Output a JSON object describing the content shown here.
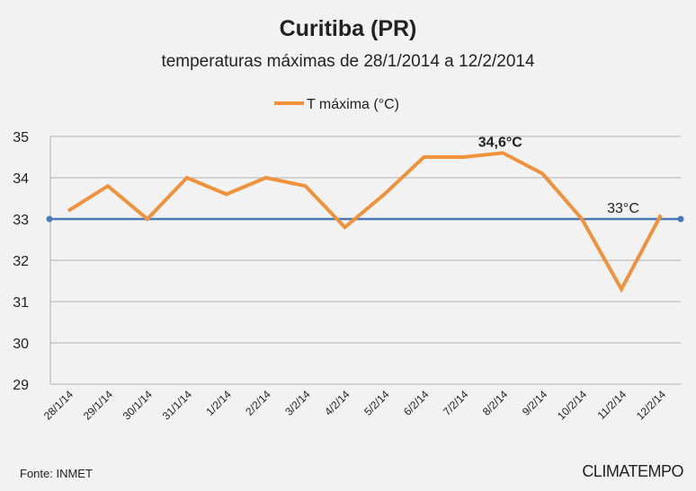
{
  "chart_data": {
    "type": "line",
    "title": "Curitiba (PR)",
    "subtitle": "temperaturas máximas de 28/1/2014 a 12/2/2014",
    "legend": {
      "label": "T máxima (°C)",
      "position": "top"
    },
    "categories": [
      "28/1/14",
      "29/1/14",
      "30/1/14",
      "31/1/14",
      "1/2/14",
      "2/2/14",
      "3/2/14",
      "4/2/14",
      "5/2/14",
      "6/2/14",
      "7/2/14",
      "8/2/14",
      "9/2/14",
      "10/2/14",
      "11/2/14",
      "12/2/14"
    ],
    "series": [
      {
        "name": "T máxima (°C)",
        "color": "#f0923c",
        "values": [
          33.2,
          33.8,
          33.0,
          34.0,
          33.6,
          34.0,
          33.8,
          32.8,
          33.6,
          34.5,
          34.5,
          34.6,
          34.1,
          33.0,
          31.3,
          33.1
        ]
      }
    ],
    "reference_line": {
      "value": 33,
      "label": "33°C",
      "color": "#4a79b5"
    },
    "annotations": [
      {
        "category": "8/2/14",
        "label": "34,6°C"
      }
    ],
    "ylim": [
      29,
      35
    ],
    "yticks": [
      "29",
      "30",
      "31",
      "32",
      "33",
      "34",
      "35"
    ],
    "grid": true,
    "xlabel": "",
    "ylabel": ""
  },
  "footer": {
    "source": "Fonte: INMET",
    "logo": "CLIMATEMPO"
  }
}
